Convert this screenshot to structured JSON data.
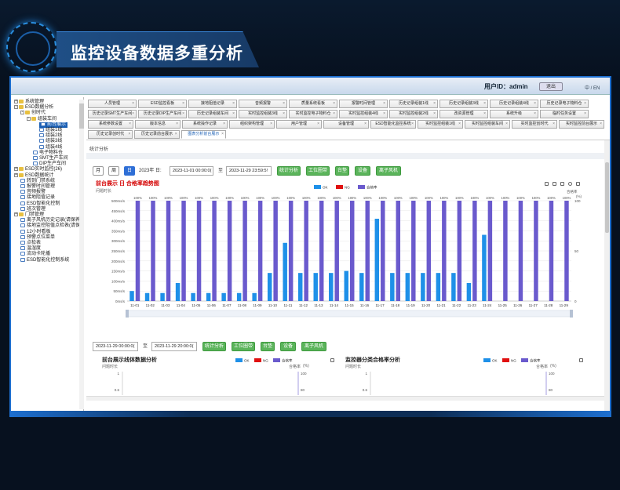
{
  "hero": {
    "title": "监控设备数据多重分析"
  },
  "topbar": {
    "user_id": "用户ID：admin",
    "logout": "退出",
    "lang": "中 / EN"
  },
  "sidebar": {
    "items": [
      {
        "label": "系统管理",
        "level": 0,
        "icon": "folder-icon",
        "toggle": "+"
      },
      {
        "label": "ESD数据分析",
        "level": 0,
        "icon": "folder-icon",
        "toggle": "-"
      },
      {
        "label": "创时代",
        "level": 1,
        "icon": "folder-icon",
        "toggle": "-"
      },
      {
        "label": "组装车间",
        "level": 2,
        "icon": "folder-icon",
        "toggle": "-"
      },
      {
        "label": "前台展示",
        "level": 3,
        "icon": "doc-icon",
        "selected": true
      },
      {
        "label": "组装1线",
        "level": 3,
        "icon": "doc-icon"
      },
      {
        "label": "组装2线",
        "level": 3,
        "icon": "doc-icon"
      },
      {
        "label": "组装3线",
        "level": 3,
        "icon": "doc-icon"
      },
      {
        "label": "组装4线",
        "level": 3,
        "icon": "doc-icon"
      },
      {
        "label": "电子物料仓",
        "level": 2,
        "icon": "doc-icon"
      },
      {
        "label": "SMT生产车间",
        "level": 2,
        "icon": "doc-icon"
      },
      {
        "label": "DIP生产车间",
        "level": 2,
        "icon": "doc-icon"
      },
      {
        "label": "ESD实时监控(26)",
        "level": 0,
        "icon": "folder-icon",
        "toggle": "+"
      },
      {
        "label": "ESD数据统计",
        "level": 0,
        "icon": "folder-icon",
        "toggle": "+"
      },
      {
        "label": "转到门禁系统",
        "level": 0,
        "icon": "doc-icon"
      },
      {
        "label": "报警时间管理",
        "level": 0,
        "icon": "doc-icon"
      },
      {
        "label": "音频报警",
        "level": 0,
        "icon": "doc-icon"
      },
      {
        "label": "接地阻值记录",
        "level": 0,
        "icon": "doc-icon"
      },
      {
        "label": "ESD智能化控制",
        "level": 0,
        "icon": "doc-icon"
      },
      {
        "label": "班次管理",
        "level": 0,
        "icon": "doc-icon"
      },
      {
        "label": "门禁管理",
        "level": 0,
        "icon": "folder-icon",
        "toggle": "+"
      },
      {
        "label": "离子风机历史记录(请保养)",
        "level": 0,
        "icon": "doc-icon"
      },
      {
        "label": "接地监控阻值点检表(请保养)",
        "level": 0,
        "icon": "doc-icon"
      },
      {
        "label": "12小时看板",
        "level": 0,
        "icon": "doc-icon"
      },
      {
        "label": "预警点位菜单",
        "level": 0,
        "icon": "doc-icon"
      },
      {
        "label": "点检表",
        "level": 0,
        "icon": "doc-icon"
      },
      {
        "label": "温湿度",
        "level": 0,
        "icon": "doc-icon"
      },
      {
        "label": "流动卡轮播",
        "level": 0,
        "icon": "doc-icon"
      },
      {
        "label": "ESD智能化控制系统",
        "level": 0,
        "icon": "doc-icon"
      }
    ]
  },
  "tabs": {
    "rows": [
      [
        "人员管理",
        "ESD监控看板",
        "接地阻值记录",
        "音频报警",
        "质量系统看板",
        "报警时间管理",
        "历史记录组装1线",
        "历史记录组装3线",
        "历史记录组装4线",
        "历史记录电子物料仓"
      ],
      [
        "历史记录SMT生产车间",
        "历史记录DIP生产车间",
        "历史记录组装车间",
        "实时监控组装3线",
        "实时监控电子物料仓",
        "实时监控组装4线",
        "实时监控组装2线",
        "改资源管理",
        "系统升级",
        "临时任务设置"
      ],
      [
        "系统参数设置",
        "版本信息",
        "系统操作记录",
        "组织架构管理",
        "用户管理",
        "设备管理",
        "ESD智能化监控系统",
        "实时监控组装1线",
        "实时监控组装车间",
        "实时监控创时代",
        "实时监控前台展示"
      ],
      [
        "历史记录创时代",
        "历史记录前台展示",
        "图表分析前台展示"
      ]
    ],
    "active": "图表分析前台展示"
  },
  "content": {
    "breadcrumb": "统计分析",
    "range_buttons": [
      "月",
      "周",
      "日"
    ],
    "year_label": "2023年",
    "day_label": "日:",
    "start_time": "2023-11-01 00:00:0(",
    "to_label": "至",
    "end_time": "2023-11-29 23:59:5!",
    "action_buttons": [
      "统计分析",
      "工位圈带",
      "台垫",
      "设备",
      "离子风机"
    ],
    "chart1": {
      "title": "前台展示 日 合格率趋势图",
      "subtitle": "问题时长",
      "right_axis_name": "合格率",
      "right_axis_unit": "(%)"
    },
    "start_time2": "2023-11-29 00:00:0(",
    "end_time2": "2023-11-29 20:00:0(",
    "chart2": {
      "title": "前台展示线体数据分析",
      "left_unit": "问题时长",
      "right_axis": "合格率",
      "right_unit": "(%)"
    },
    "chart3": {
      "title": "监控器分类合格率分析",
      "left_unit": "问题时长",
      "right_axis": "合格率",
      "right_unit": "(%)"
    }
  },
  "chart_data": [
    {
      "type": "bar",
      "title": "前台展示 日 合格率趋势图",
      "categories": [
        "11-01",
        "11-02",
        "11-03",
        "11-04",
        "11-05",
        "11-06",
        "11-07",
        "11-08",
        "11-09",
        "11-10",
        "11-11",
        "11-12",
        "11-13",
        "11-14",
        "11-15",
        "11-16",
        "11-17",
        "11-18",
        "11-19",
        "11-20",
        "11-21",
        "11-22",
        "11-23",
        "11-24",
        "11-25",
        "11-26",
        "11-27",
        "11-28",
        "11-29"
      ],
      "y_axis_ticks": [
        "0ms/s",
        "50ms/s",
        "100ms/s",
        "150ms/s",
        "200ms/s",
        "250ms/s",
        "300ms/s",
        "350ms/s",
        "400ms/s",
        "450ms/s",
        "500ms/s"
      ],
      "ylim": [
        0,
        500
      ],
      "right_ticks": [
        "0",
        "50",
        "100"
      ],
      "right_ylim": [
        0,
        100
      ],
      "series": [
        {
          "name": "OK",
          "color": "#1e90e8",
          "values": [
            50,
            40,
            40,
            90,
            40,
            40,
            40,
            40,
            40,
            140,
            290,
            140,
            140,
            140,
            150,
            140,
            410,
            140,
            140,
            140,
            140,
            140,
            90,
            330,
            0,
            0,
            0,
            0,
            0
          ]
        },
        {
          "name": "NG",
          "color": "#e01010",
          "values": [
            0,
            0,
            0,
            0,
            0,
            0,
            0,
            0,
            0,
            0,
            0,
            0,
            0,
            0,
            0,
            0,
            0,
            0,
            0,
            0,
            0,
            0,
            0,
            0,
            0,
            0,
            0,
            0,
            0
          ]
        },
        {
          "name": "合格率",
          "color": "#6a5acd",
          "values": [
            100,
            100,
            100,
            100,
            100,
            100,
            100,
            100,
            100,
            100,
            100,
            100,
            100,
            100,
            100,
            100,
            100,
            100,
            100,
            100,
            100,
            100,
            100,
            100,
            100,
            100,
            100,
            100,
            100
          ]
        }
      ],
      "data_labels": [
        "100%",
        "100%",
        "100%",
        "100%",
        "100%",
        "100%",
        "100%",
        "100%",
        "100%",
        "100%",
        "100%",
        "100%",
        "100%",
        "100%",
        "100%",
        "100%",
        "100%",
        "100%",
        "100%",
        "100%",
        "100%",
        "100%",
        "100%",
        "100%",
        "100%",
        "100%",
        "100%",
        "100%",
        "100%"
      ],
      "legend": [
        "OK",
        "NG",
        "合格率"
      ],
      "legend_position": "top-center"
    },
    {
      "type": "bar",
      "title": "前台展示线体数据分析",
      "y_axis_ticks": [
        "1",
        "0.6"
      ],
      "right_ticks": [
        "100",
        "80"
      ],
      "legend": [
        "OK",
        "NG",
        "合格率"
      ],
      "series": []
    },
    {
      "type": "bar",
      "title": "监控器分类合格率分析",
      "y_axis_ticks": [
        "1",
        "0.6"
      ],
      "right_ticks": [
        "100",
        "80"
      ],
      "legend": [
        "OK",
        "NG",
        "合格率"
      ],
      "series": []
    }
  ]
}
